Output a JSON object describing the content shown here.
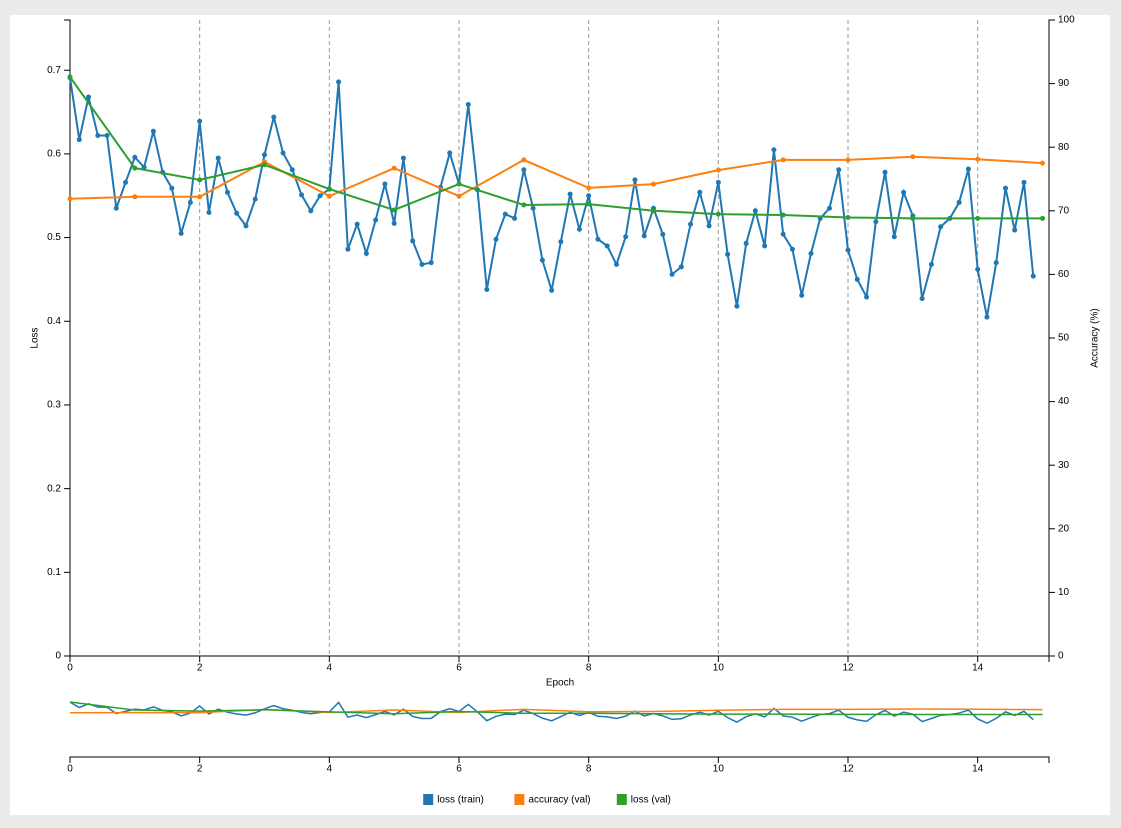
{
  "chart_data": {
    "type": "line",
    "x_label": "Epoch",
    "y_label": "Loss",
    "y2_label": "Accuracy (%)",
    "xlim": [
      0,
      15.1
    ],
    "ylim": [
      0,
      0.76
    ],
    "y2lim": [
      0,
      100
    ],
    "xticks": [
      0,
      2,
      4,
      6,
      8,
      10,
      12,
      14
    ],
    "yticks": [
      0,
      0.1,
      0.2,
      0.3,
      0.4,
      0.5,
      0.6,
      0.7
    ],
    "y2ticks": [
      0,
      10,
      20,
      30,
      40,
      50,
      60,
      70,
      80,
      90,
      100
    ],
    "grid": "x",
    "legend": "bottom",
    "series": [
      {
        "name": "loss (train)",
        "color": "#1f77b4",
        "x": [
          0,
          0.143,
          0.286,
          0.429,
          0.571,
          0.714,
          0.857,
          1,
          1.143,
          1.286,
          1.429,
          1.571,
          1.714,
          1.857,
          2,
          2.143,
          2.286,
          2.429,
          2.571,
          2.714,
          2.857,
          3,
          3.143,
          3.286,
          3.429,
          3.571,
          3.714,
          3.857,
          4,
          4.143,
          4.286,
          4.429,
          4.571,
          4.714,
          4.857,
          5,
          5.143,
          5.286,
          5.429,
          5.571,
          5.714,
          5.857,
          6,
          6.143,
          6.286,
          6.429,
          6.571,
          6.714,
          6.857,
          7,
          7.143,
          7.286,
          7.429,
          7.571,
          7.714,
          7.857,
          8,
          8.143,
          8.286,
          8.429,
          8.571,
          8.714,
          8.857,
          9,
          9.143,
          9.286,
          9.429,
          9.571,
          9.714,
          9.857,
          10,
          10.143,
          10.286,
          10.429,
          10.571,
          10.714,
          10.857,
          11,
          11.143,
          11.286,
          11.429,
          11.571,
          11.714,
          11.857,
          12,
          12.143,
          12.286,
          12.429,
          12.571,
          12.714,
          12.857,
          13,
          13.143,
          13.286,
          13.429,
          13.571,
          13.714,
          13.857,
          14,
          14.143,
          14.286,
          14.429,
          14.571,
          14.714,
          14.857
        ],
        "values": [
          0.691,
          0.617,
          0.668,
          0.622,
          0.622,
          0.535,
          0.566,
          0.596,
          0.584,
          0.627,
          0.578,
          0.559,
          0.505,
          0.542,
          0.639,
          0.53,
          0.595,
          0.554,
          0.529,
          0.514,
          0.546,
          0.599,
          0.644,
          0.601,
          0.581,
          0.551,
          0.532,
          0.55,
          0.558,
          0.686,
          0.486,
          0.516,
          0.481,
          0.521,
          0.564,
          0.517,
          0.595,
          0.496,
          0.468,
          0.47,
          0.56,
          0.601,
          0.564,
          0.659,
          0.557,
          0.438,
          0.498,
          0.528,
          0.523,
          0.581,
          0.535,
          0.473,
          0.437,
          0.495,
          0.552,
          0.51,
          0.55,
          0.498,
          0.49,
          0.468,
          0.501,
          0.569,
          0.502,
          0.535,
          0.504,
          0.456,
          0.465,
          0.516,
          0.554,
          0.514,
          0.566,
          0.48,
          0.418,
          0.493,
          0.532,
          0.49,
          0.605,
          0.504,
          0.486,
          0.431,
          0.481,
          0.523,
          0.535,
          0.581,
          0.485,
          0.45,
          0.429,
          0.519,
          0.578,
          0.501,
          0.554,
          0.526,
          0.427,
          0.468,
          0.513,
          0.523,
          0.542,
          0.582,
          0.462,
          0.405,
          0.47,
          0.559,
          0.509,
          0.566,
          0.454
        ]
      },
      {
        "name": "accuracy (val)",
        "color": "#ff7f0e",
        "axis": "y2",
        "x": [
          0,
          1,
          2,
          3,
          4,
          5,
          6,
          7,
          8,
          9,
          10,
          11,
          12,
          13,
          14,
          15
        ],
        "values": [
          71.9,
          72.2,
          72.2,
          77.7,
          72.3,
          76.7,
          72.3,
          78.0,
          73.6,
          74.2,
          76.4,
          78.0,
          78.0,
          78.5,
          78.1,
          77.5
        ]
      },
      {
        "name": "loss (val)",
        "color": "#2ca02c",
        "x": [
          0,
          1,
          2,
          3,
          4,
          5,
          6,
          7,
          8,
          9,
          10,
          11,
          12,
          13,
          14,
          15
        ],
        "values": [
          0.692,
          0.583,
          0.569,
          0.587,
          0.558,
          0.533,
          0.564,
          0.539,
          0.54,
          0.532,
          0.528,
          0.527,
          0.524,
          0.523,
          0.523,
          0.523
        ]
      }
    ]
  }
}
